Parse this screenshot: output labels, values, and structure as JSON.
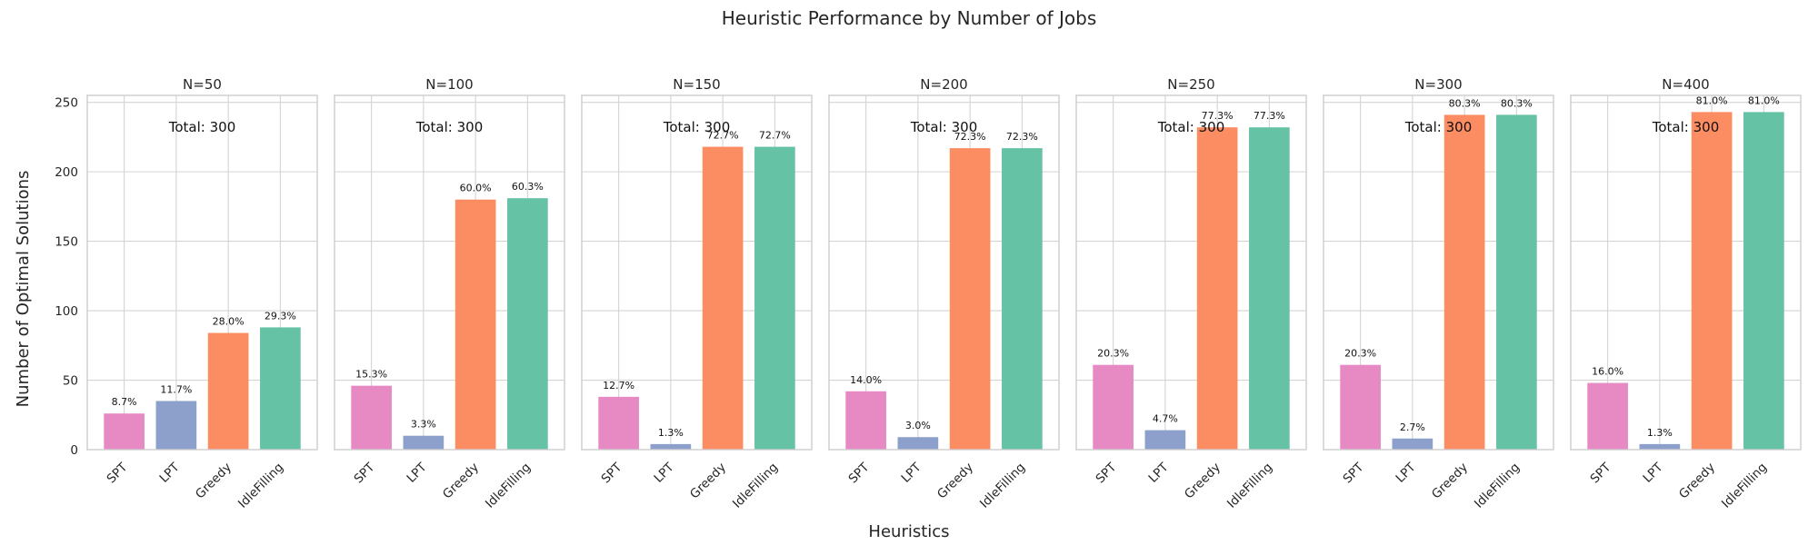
{
  "figure": {
    "title": "Heuristic Performance by Number of Jobs",
    "xlabel": "Heuristics",
    "ylabel": "Number of Optimal Solutions"
  },
  "colors": {
    "SPT": "#e78ac3",
    "LPT": "#8da0cb",
    "Greedy": "#fc8d62",
    "IdleFilling": "#66c2a5"
  },
  "chart_data": {
    "type": "bar",
    "layout": "small-multiples",
    "categories": [
      "SPT",
      "LPT",
      "Greedy",
      "IdleFilling"
    ],
    "ylim": [
      0,
      255
    ],
    "yticks": [
      0,
      50,
      100,
      150,
      200,
      250
    ],
    "grid": true,
    "panels": [
      {
        "title": "N=50",
        "total_label": "Total: 300",
        "values": [
          26,
          35,
          84,
          88
        ],
        "labels": [
          "8.7%",
          "11.7%",
          "28.0%",
          "29.3%"
        ]
      },
      {
        "title": "N=100",
        "total_label": "Total: 300",
        "values": [
          46,
          10,
          180,
          181
        ],
        "labels": [
          "15.3%",
          "3.3%",
          "60.0%",
          "60.3%"
        ]
      },
      {
        "title": "N=150",
        "total_label": "Total: 300",
        "values": [
          38,
          4,
          218,
          218
        ],
        "labels": [
          "12.7%",
          "1.3%",
          "72.7%",
          "72.7%"
        ]
      },
      {
        "title": "N=200",
        "total_label": "Total: 300",
        "values": [
          42,
          9,
          217,
          217
        ],
        "labels": [
          "14.0%",
          "3.0%",
          "72.3%",
          "72.3%"
        ]
      },
      {
        "title": "N=250",
        "total_label": "Total: 300",
        "values": [
          61,
          14,
          232,
          232
        ],
        "labels": [
          "20.3%",
          "4.7%",
          "77.3%",
          "77.3%"
        ]
      },
      {
        "title": "N=300",
        "total_label": "Total: 300",
        "values": [
          61,
          8,
          241,
          241
        ],
        "labels": [
          "20.3%",
          "2.7%",
          "80.3%",
          "80.3%"
        ]
      },
      {
        "title": "N=400",
        "total_label": "Total: 300",
        "values": [
          48,
          4,
          243,
          243
        ],
        "labels": [
          "16.0%",
          "1.3%",
          "81.0%",
          "81.0%"
        ]
      }
    ]
  }
}
